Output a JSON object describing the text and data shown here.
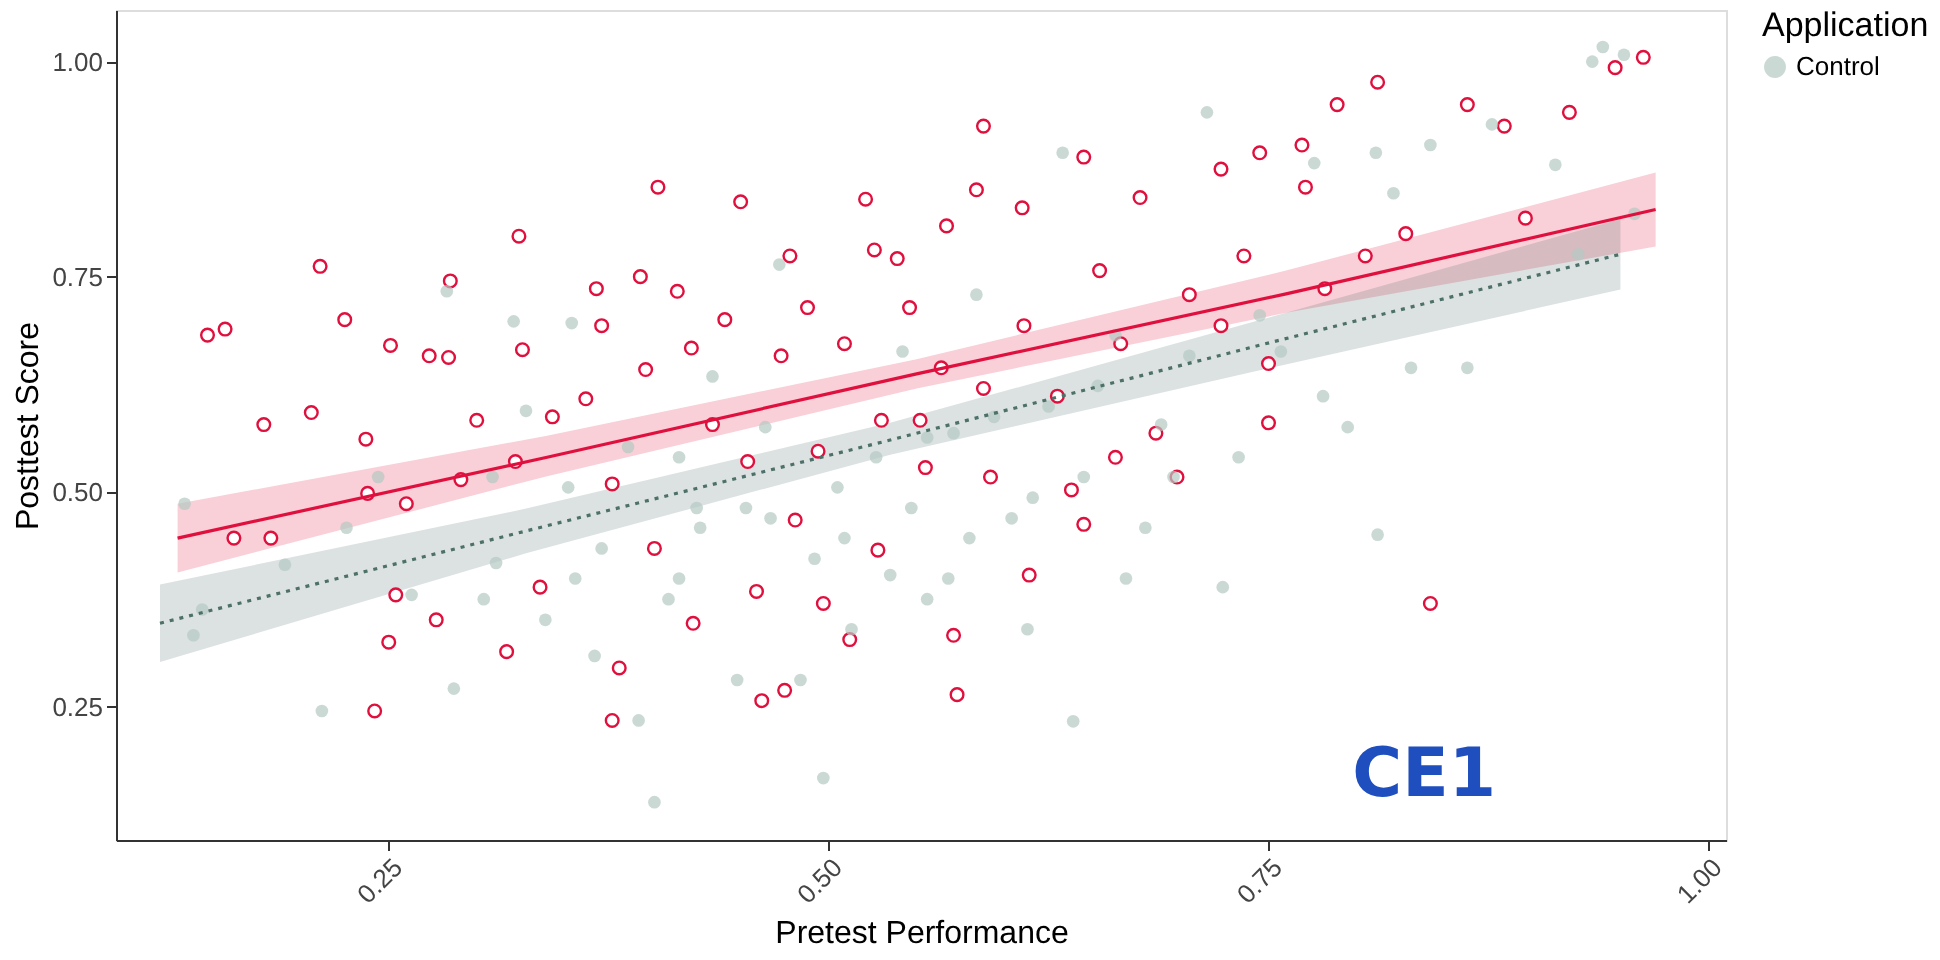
{
  "chart_data": {
    "type": "scatter",
    "xlabel": "Pretest Performance",
    "ylabel": "Posttest Score",
    "legend_title": "Application",
    "legend": "right",
    "grid": false,
    "xlim": [
      0.095,
      1.01
    ],
    "ylim": [
      0.095,
      1.06
    ],
    "xticks": [
      {
        "value": 0.25,
        "label": "0.25"
      },
      {
        "value": 0.5,
        "label": "0.50"
      },
      {
        "value": 0.75,
        "label": "0.75"
      },
      {
        "value": 1.0,
        "label": "1.00"
      }
    ],
    "yticks": [
      {
        "value": 0.25,
        "label": "0.25"
      },
      {
        "value": 0.5,
        "label": "0.50"
      },
      {
        "value": 0.75,
        "label": "0.75"
      },
      {
        "value": 1.0,
        "label": "1.00"
      }
    ],
    "annotations": [
      "CE1"
    ],
    "series": [
      {
        "marker": "circle",
        "color": "#e0103e",
        "x": [
          0.147,
          0.157,
          0.162,
          0.179,
          0.183,
          0.206,
          0.225,
          0.211,
          0.238,
          0.237,
          0.242,
          0.251,
          0.25,
          0.254,
          0.26,
          0.273,
          0.285,
          0.284,
          0.277,
          0.291,
          0.3,
          0.324,
          0.326,
          0.322,
          0.317,
          0.336,
          0.343,
          0.362,
          0.368,
          0.371,
          0.377,
          0.381,
          0.377,
          0.393,
          0.403,
          0.396,
          0.401,
          0.414,
          0.422,
          0.423,
          0.434,
          0.441,
          0.45,
          0.454,
          0.459,
          0.473,
          0.478,
          0.481,
          0.488,
          0.494,
          0.497,
          0.509,
          0.512,
          0.521,
          0.528,
          0.53,
          0.539,
          0.546,
          0.552,
          0.555,
          0.567,
          0.571,
          0.573,
          0.584,
          0.588,
          0.588,
          0.592,
          0.61,
          0.611,
          0.614,
          0.63,
          0.638,
          0.645,
          0.654,
          0.666,
          0.677,
          0.686,
          0.698,
          0.705,
          0.723,
          0.723,
          0.736,
          0.745,
          0.75,
          0.75,
          0.769,
          0.782,
          0.789,
          0.812,
          0.828,
          0.842,
          0.863,
          0.884,
          0.896,
          0.921,
          0.947,
          0.963,
          0.771,
          0.805,
          0.475,
          0.526,
          0.462,
          0.645,
          0.663,
          0.564
        ],
        "values": [
          0.682,
          0.689,
          0.446,
          0.578,
          0.446,
          0.592,
          0.7,
          0.762,
          0.498,
          0.561,
          0.245,
          0.67,
          0.325,
          0.38,
          0.486,
          0.658,
          0.745,
          0.656,
          0.351,
          0.514,
          0.583,
          0.797,
          0.665,
          0.535,
          0.314,
          0.389,
          0.587,
          0.608,
          0.736,
          0.693,
          0.509,
          0.295,
          0.234,
          0.75,
          0.854,
          0.642,
          0.434,
          0.733,
          0.667,
          0.347,
          0.578,
          0.7,
          0.837,
          0.535,
          0.384,
          0.658,
          0.774,
          0.467,
          0.714,
          0.547,
          0.37,
          0.672,
          0.328,
          0.84,
          0.432,
          0.583,
          0.771,
          0.714,
          0.583,
          0.528,
          0.809,
          0.333,
          0.264,
          0.851,
          0.925,
          0.62,
          0.517,
          0.83,
          0.693,
          0.403,
          0.611,
          0.502,
          0.889,
          0.757,
          0.672,
          0.842,
          0.568,
          0.517,
          0.729,
          0.875,
          0.693,
          0.774,
          0.894,
          0.58,
          0.649,
          0.903,
          0.736,
          0.95,
          0.976,
          0.8,
          0.37,
          0.95,
          0.925,
          0.818,
          0.941,
          0.993,
          1.005,
          0.854,
          0.774,
          0.269,
          0.781,
          0.257,
          0.462,
          0.54,
          0.644
        ]
      },
      {
        "marker": "circle",
        "name": "Control",
        "color": "#b5c9c3",
        "x": [
          0.134,
          0.139,
          0.144,
          0.191,
          0.212,
          0.226,
          0.244,
          0.263,
          0.283,
          0.287,
          0.304,
          0.311,
          0.321,
          0.328,
          0.339,
          0.352,
          0.354,
          0.367,
          0.371,
          0.386,
          0.401,
          0.409,
          0.415,
          0.427,
          0.434,
          0.448,
          0.453,
          0.467,
          0.472,
          0.484,
          0.497,
          0.505,
          0.513,
          0.527,
          0.535,
          0.542,
          0.547,
          0.556,
          0.571,
          0.58,
          0.584,
          0.594,
          0.604,
          0.613,
          0.625,
          0.639,
          0.633,
          0.645,
          0.653,
          0.663,
          0.669,
          0.68,
          0.689,
          0.696,
          0.705,
          0.715,
          0.724,
          0.733,
          0.745,
          0.757,
          0.776,
          0.781,
          0.795,
          0.811,
          0.812,
          0.821,
          0.831,
          0.842,
          0.863,
          0.877,
          0.913,
          0.926,
          0.934,
          0.94,
          0.952,
          0.958,
          0.392,
          0.425,
          0.492,
          0.556,
          0.509,
          0.464,
          0.415,
          0.356,
          0.309,
          0.616,
          0.568
        ],
        "values": [
          0.486,
          0.333,
          0.363,
          0.415,
          0.245,
          0.458,
          0.517,
          0.38,
          0.733,
          0.271,
          0.375,
          0.417,
          0.698,
          0.594,
          0.351,
          0.505,
          0.696,
          0.309,
          0.434,
          0.552,
          0.139,
          0.375,
          0.54,
          0.458,
          0.634,
          0.281,
          0.481,
          0.469,
          0.764,
          0.281,
          0.167,
          0.505,
          0.34,
          0.54,
          0.403,
          0.663,
          0.481,
          0.375,
          0.568,
          0.446,
          0.729,
          0.587,
          0.469,
          0.34,
          0.599,
          0.233,
          0.894,
          0.517,
          0.623,
          0.682,
          0.399,
          0.458,
          0.578,
          0.517,
          0.658,
          0.941,
          0.389,
          0.54,
          0.705,
          0.663,
          0.882,
          0.611,
          0.575,
          0.894,
          0.45,
          0.847,
          0.644,
          0.903,
          0.644,
          0.927,
          0.88,
          0.776,
          1.0,
          1.017,
          1.008,
          0.823,
          0.234,
          0.481,
          0.422,
          0.563,
          0.446,
          0.575,
          0.399,
          0.399,
          0.517,
          0.493,
          0.399
        ]
      },
      {
        "type": "line",
        "color": "#e0103e",
        "line_style": "solid",
        "x": [
          0.13,
          0.34,
          0.55,
          0.76,
          0.97
        ],
        "values": [
          0.446,
          0.54,
          0.637,
          0.73,
          0.828
        ],
        "lower": [
          0.406,
          0.518,
          0.62,
          0.708,
          0.785
        ],
        "upper": [
          0.486,
          0.565,
          0.654,
          0.757,
          0.871
        ]
      },
      {
        "type": "line",
        "color": "#4d7068",
        "line_style": "dotted",
        "x": [
          0.12,
          0.3275,
          0.535,
          0.7425,
          0.95
        ],
        "values": [
          0.347,
          0.454,
          0.56,
          0.669,
          0.776
        ],
        "lower": [
          0.302,
          0.428,
          0.543,
          0.64,
          0.735
        ],
        "upper": [
          0.392,
          0.48,
          0.58,
          0.698,
          0.817
        ]
      }
    ]
  }
}
